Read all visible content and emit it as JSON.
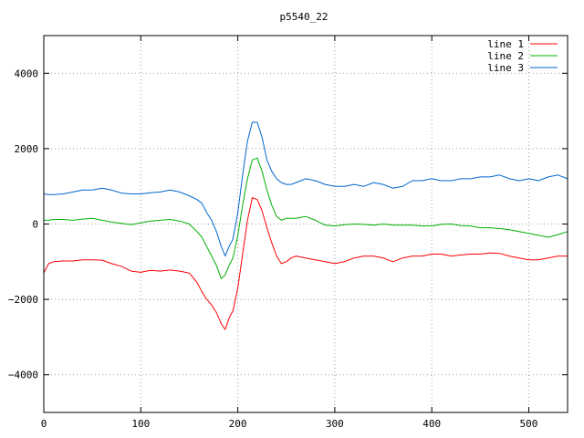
{
  "chart_data": {
    "type": "line",
    "title": "p5540_22",
    "xlabel": "",
    "ylabel": "",
    "xlim": [
      0,
      540
    ],
    "ylim": [
      -5000,
      5000
    ],
    "xticks": [
      0,
      100,
      200,
      300,
      400,
      500
    ],
    "yticks": [
      -4000,
      -2000,
      0,
      2000,
      4000
    ],
    "grid": true,
    "legend_position": "top-right",
    "series": [
      {
        "name": "line 1",
        "color": "#ff0000",
        "x": [
          0,
          5,
          10,
          20,
          30,
          40,
          50,
          60,
          70,
          80,
          90,
          100,
          110,
          120,
          130,
          140,
          150,
          158,
          163,
          168,
          173,
          178,
          183,
          187,
          191,
          195,
          200,
          205,
          210,
          215,
          220,
          225,
          230,
          235,
          240,
          245,
          250,
          255,
          260,
          270,
          280,
          290,
          300,
          310,
          320,
          330,
          340,
          350,
          360,
          370,
          380,
          390,
          400,
          410,
          420,
          430,
          440,
          450,
          460,
          470,
          480,
          490,
          500,
          510,
          520,
          530,
          540
        ],
        "y": [
          -1300,
          -1050,
          -1000,
          -980,
          -980,
          -950,
          -950,
          -960,
          -1050,
          -1120,
          -1250,
          -1280,
          -1230,
          -1250,
          -1220,
          -1250,
          -1300,
          -1550,
          -1800,
          -2000,
          -2150,
          -2350,
          -2650,
          -2800,
          -2500,
          -2300,
          -1700,
          -800,
          100,
          700,
          650,
          350,
          -100,
          -500,
          -850,
          -1050,
          -1000,
          -900,
          -850,
          -900,
          -950,
          -1000,
          -1050,
          -1000,
          -900,
          -850,
          -850,
          -900,
          -1000,
          -900,
          -850,
          -850,
          -800,
          -800,
          -850,
          -820,
          -800,
          -800,
          -770,
          -780,
          -850,
          -900,
          -950,
          -950,
          -900,
          -850,
          -850
        ]
      },
      {
        "name": "line 2",
        "color": "#00b000",
        "x": [
          0,
          5,
          10,
          20,
          30,
          40,
          50,
          60,
          70,
          80,
          90,
          100,
          110,
          120,
          130,
          140,
          150,
          158,
          163,
          168,
          173,
          178,
          183,
          187,
          191,
          195,
          200,
          205,
          210,
          215,
          220,
          225,
          230,
          235,
          240,
          245,
          250,
          255,
          260,
          270,
          280,
          290,
          300,
          310,
          320,
          330,
          340,
          350,
          360,
          370,
          380,
          390,
          400,
          410,
          420,
          430,
          440,
          450,
          460,
          470,
          480,
          490,
          500,
          510,
          520,
          530,
          540
        ],
        "y": [
          100,
          100,
          120,
          120,
          100,
          130,
          150,
          100,
          50,
          20,
          -20,
          30,
          80,
          100,
          120,
          80,
          0,
          -200,
          -350,
          -600,
          -850,
          -1100,
          -1450,
          -1350,
          -1100,
          -900,
          -300,
          500,
          1200,
          1700,
          1750,
          1400,
          900,
          500,
          200,
          100,
          150,
          150,
          150,
          200,
          100,
          -30,
          -50,
          -20,
          0,
          -10,
          -30,
          0,
          -30,
          -30,
          -30,
          -50,
          -50,
          -10,
          0,
          -40,
          -50,
          -100,
          -100,
          -120,
          -150,
          -200,
          -250,
          -300,
          -350,
          -280,
          -200
        ]
      },
      {
        "name": "line 3",
        "color": "#0066cc",
        "x": [
          0,
          5,
          10,
          20,
          30,
          40,
          50,
          60,
          70,
          80,
          90,
          100,
          110,
          120,
          130,
          140,
          150,
          158,
          163,
          168,
          173,
          178,
          183,
          187,
          191,
          195,
          200,
          205,
          210,
          215,
          220,
          225,
          230,
          235,
          240,
          245,
          250,
          255,
          260,
          270,
          280,
          290,
          300,
          310,
          320,
          330,
          340,
          350,
          360,
          370,
          380,
          390,
          400,
          410,
          420,
          430,
          440,
          450,
          460,
          470,
          480,
          490,
          500,
          510,
          520,
          530,
          540
        ],
        "y": [
          800,
          780,
          780,
          800,
          850,
          900,
          900,
          950,
          900,
          820,
          800,
          800,
          830,
          850,
          900,
          850,
          750,
          650,
          550,
          300,
          100,
          -200,
          -600,
          -850,
          -600,
          -400,
          300,
          1300,
          2200,
          2700,
          2700,
          2300,
          1700,
          1400,
          1200,
          1100,
          1050,
          1050,
          1100,
          1200,
          1150,
          1050,
          1000,
          1000,
          1050,
          1000,
          1100,
          1050,
          950,
          1000,
          1150,
          1150,
          1200,
          1150,
          1150,
          1200,
          1200,
          1250,
          1250,
          1300,
          1200,
          1150,
          1200,
          1150,
          1250,
          1300,
          1200
        ]
      }
    ]
  }
}
